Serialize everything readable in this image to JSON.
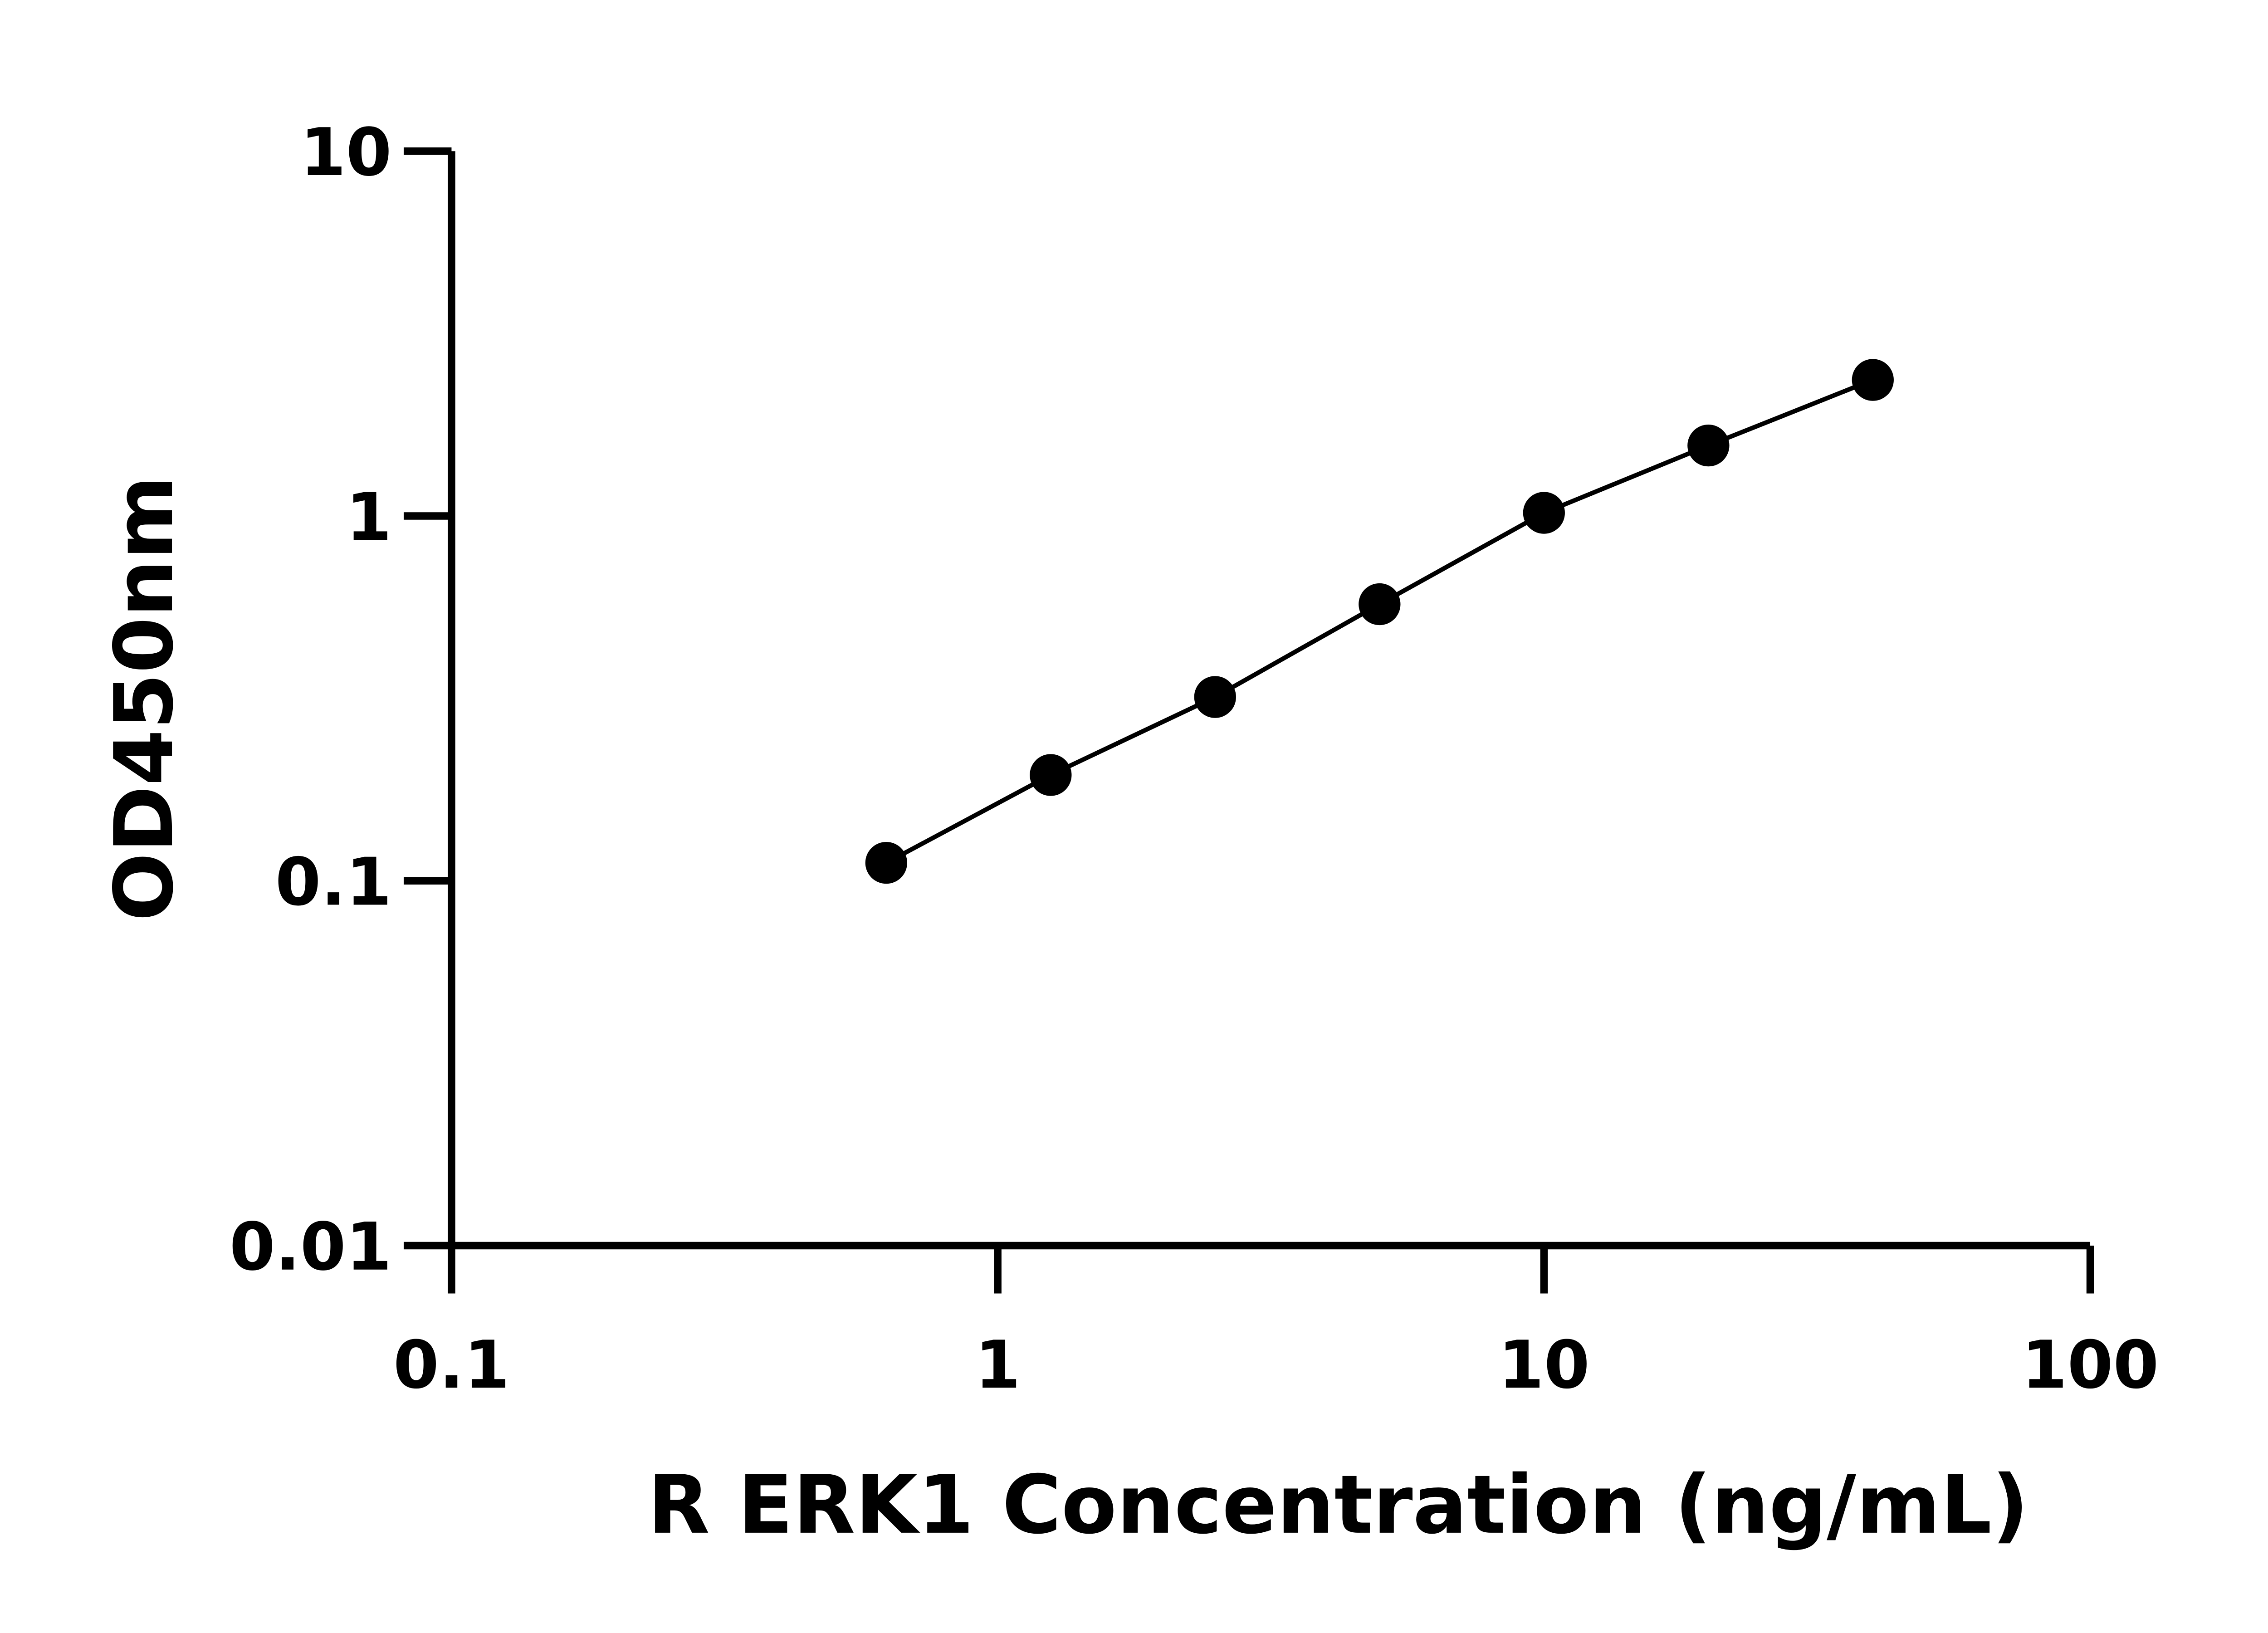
{
  "chart_data": {
    "type": "line",
    "title": "",
    "xlabel": "R ERK1 Concentration (ng/mL)",
    "ylabel": "OD450nm",
    "xscale": "log",
    "yscale": "log",
    "xlim": [
      0.1,
      100
    ],
    "ylim": [
      0.01,
      10
    ],
    "xticks": [
      "0.1",
      "1",
      "10",
      "100"
    ],
    "yticks": [
      "0.01",
      "0.1",
      "1",
      "10"
    ],
    "grid": false,
    "series": [
      {
        "x": [
          0.625,
          1.25,
          2.5,
          5,
          10,
          20,
          40
        ],
        "y": [
          0.112,
          0.195,
          0.319,
          0.573,
          1.02,
          1.56,
          2.36
        ],
        "marker": "circle",
        "color": "#000000"
      }
    ]
  }
}
